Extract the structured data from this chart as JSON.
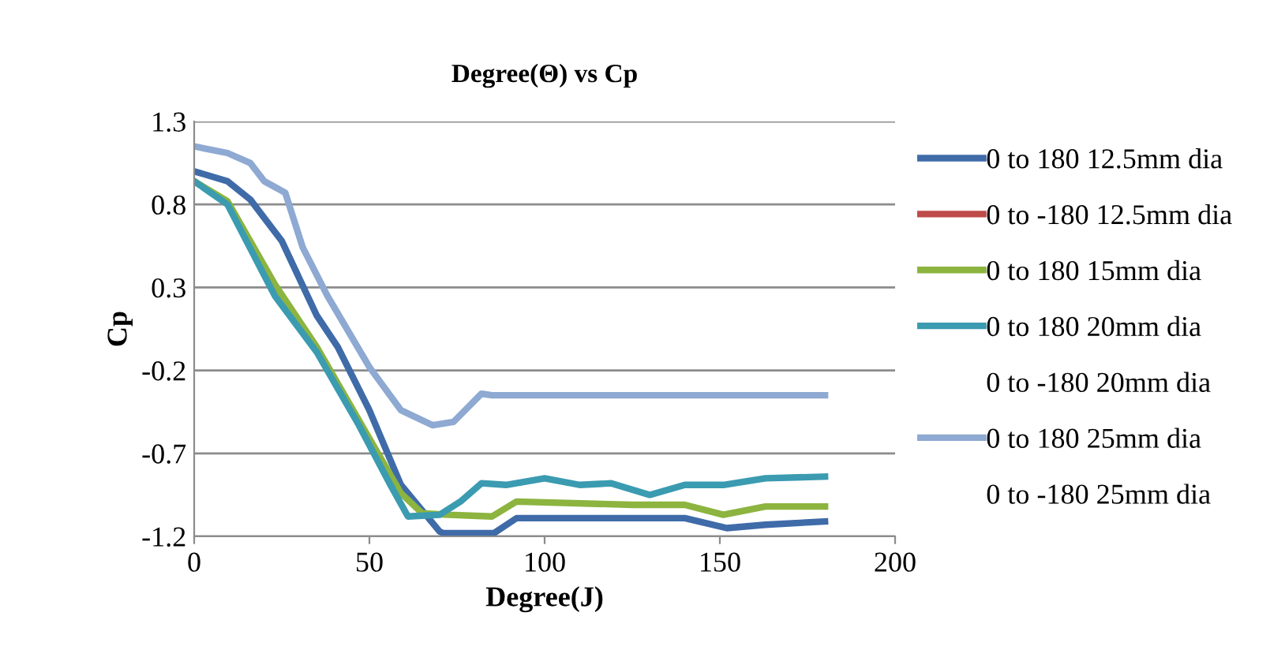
{
  "chart_data": {
    "type": "line",
    "title": "Degree(Θ) vs Cp",
    "xlabel": "Degree(J)",
    "ylabel": "Cp",
    "xlim": [
      0,
      200
    ],
    "xticks": [
      0,
      50,
      100,
      150,
      200
    ],
    "ylim": [
      -1.2,
      1.3
    ],
    "yticks": [
      -1.2,
      -0.7,
      -0.2,
      0.3,
      0.8,
      1.3
    ],
    "grid": "y",
    "legend": "right",
    "marker": "none",
    "line_style": "solid",
    "series": [
      {
        "name": "0 to 180 12.5mm dia",
        "color": "#3f6ba8",
        "x": [
          0,
          9.5,
          16,
          25,
          35,
          41,
          50,
          59,
          70,
          71,
          85.6,
          92,
          140,
          152,
          163,
          180
        ],
        "values": [
          1.0,
          0.94,
          0.83,
          0.58,
          0.13,
          -0.06,
          -0.44,
          -0.89,
          -1.17,
          -1.18,
          -1.18,
          -1.09,
          -1.09,
          -1.15,
          -1.13,
          -1.11
        ]
      },
      {
        "name": "0 to -180 12.5mm dia",
        "color": "#be4b48"
      },
      {
        "name": "0 to 180 15mm dia",
        "color": "#8cb43f",
        "x": [
          0,
          9.5,
          23,
          35,
          47,
          59,
          65,
          72.5,
          85,
          92,
          125,
          140,
          151,
          163,
          180
        ],
        "values": [
          0.94,
          0.82,
          0.32,
          -0.06,
          -0.5,
          -0.94,
          -1.06,
          -1.07,
          -1.08,
          -0.99,
          -1.01,
          -1.01,
          -1.07,
          -1.02,
          -1.02
        ]
      },
      {
        "name": "0 to 180 20mm dia",
        "color": "#3b9bb0",
        "x": [
          0,
          9.5,
          23,
          35,
          47,
          56,
          61,
          70,
          76,
          82,
          89,
          100,
          110,
          119,
          130,
          140,
          151,
          163,
          180
        ],
        "values": [
          0.94,
          0.8,
          0.25,
          -0.09,
          -0.53,
          -0.89,
          -1.08,
          -1.07,
          -0.99,
          -0.88,
          -0.89,
          -0.85,
          -0.89,
          -0.88,
          -0.95,
          -0.89,
          -0.89,
          -0.85,
          -0.84
        ]
      },
      {
        "name": "0 to -180 20mm dia"
      },
      {
        "name": "0 to 180 25mm dia",
        "color": "#8ea9d2",
        "x": [
          0,
          9.5,
          16,
          20,
          26,
          31,
          38,
          50,
          59,
          68,
          74,
          82,
          85,
          180
        ],
        "values": [
          1.15,
          1.11,
          1.05,
          0.94,
          0.87,
          0.54,
          0.25,
          -0.18,
          -0.44,
          -0.53,
          -0.51,
          -0.34,
          -0.35,
          -0.35
        ]
      },
      {
        "name": "0 to -180 25mm dia"
      }
    ]
  }
}
